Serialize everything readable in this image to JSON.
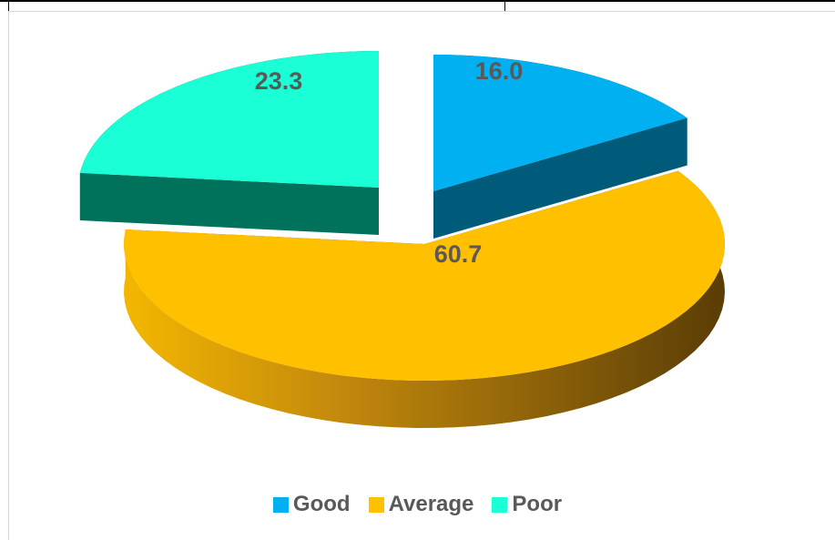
{
  "chart_data": {
    "type": "pie",
    "title": "",
    "categories": [
      "Good",
      "Average",
      "Poor"
    ],
    "values": [
      16.0,
      60.7,
      23.3
    ],
    "data_labels": [
      "16.0",
      "60.7",
      "23.3"
    ],
    "colors": [
      "#00B0F0",
      "#FFC000",
      "#1AFFD5"
    ],
    "style": "3d-exploded",
    "legend_placement": "bottom"
  },
  "legend": {
    "items": [
      {
        "label": "Good",
        "color": "#00B0F0"
      },
      {
        "label": "Average",
        "color": "#FFC000"
      },
      {
        "label": "Poor",
        "color": "#1AFFD5"
      }
    ]
  }
}
